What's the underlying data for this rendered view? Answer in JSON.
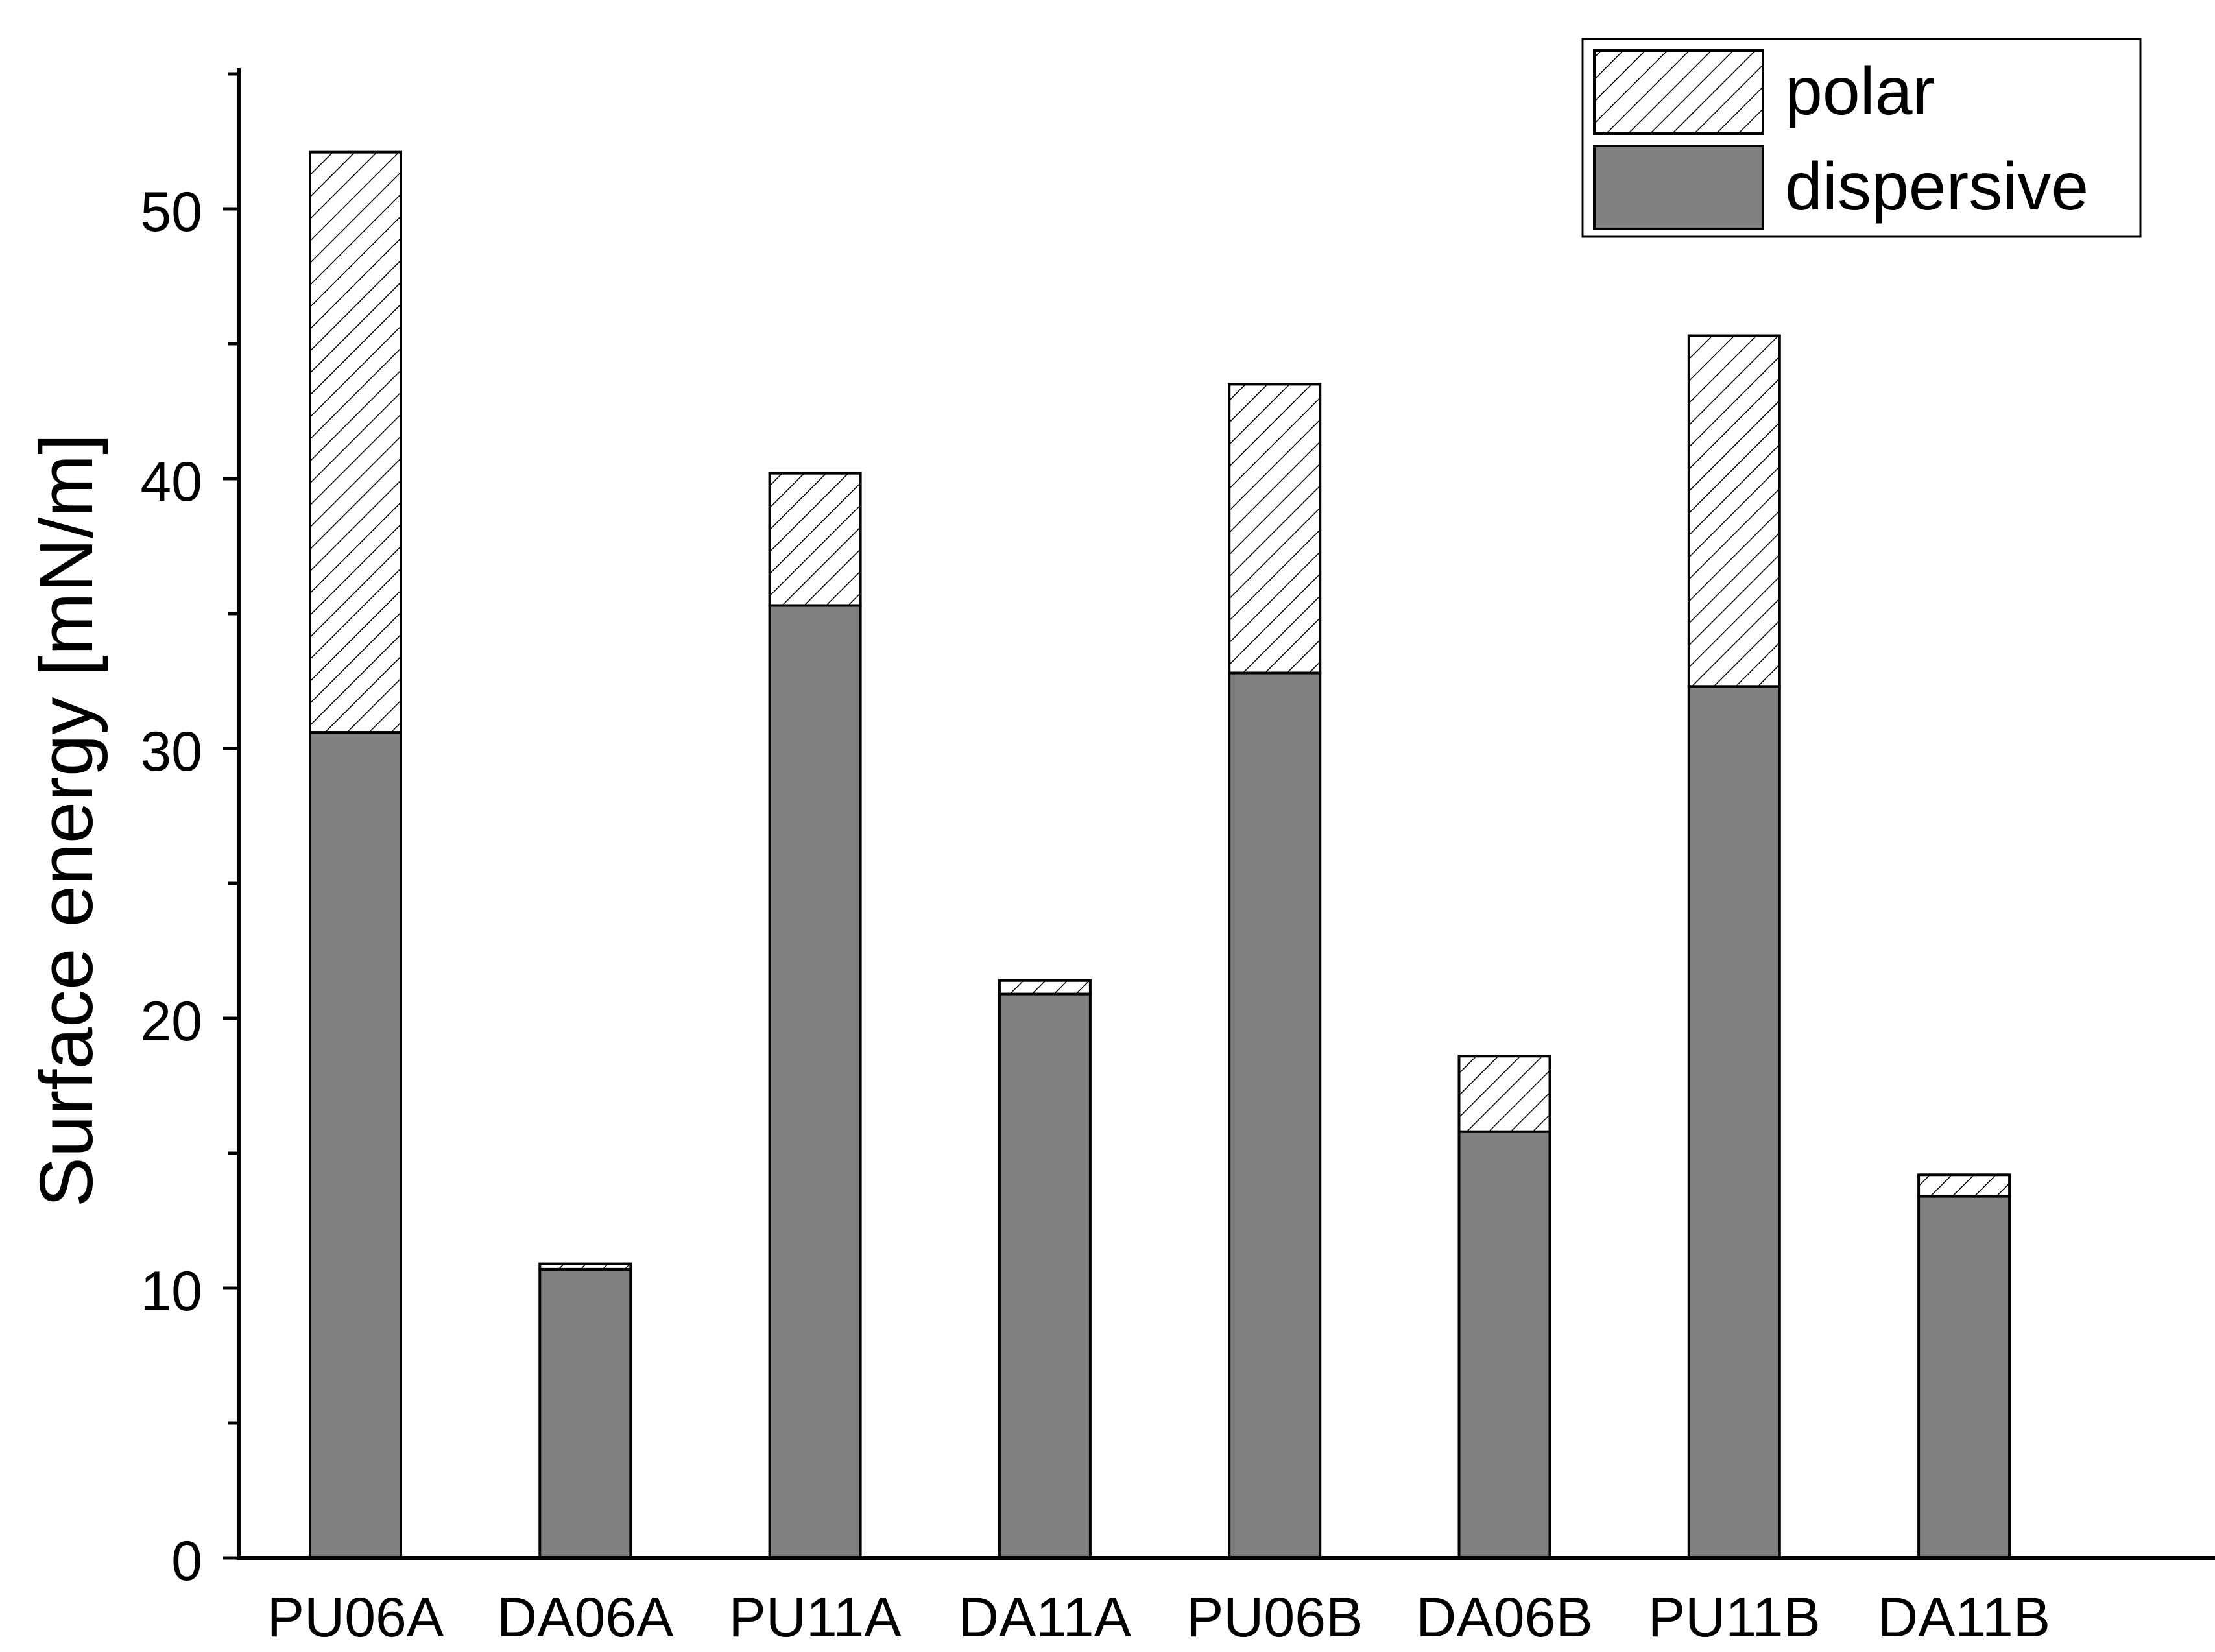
{
  "chart_data": {
    "type": "bar",
    "stacked": true,
    "title": "",
    "xlabel": "",
    "ylabel": "Surface energy [mN/m]",
    "ylim": [
      0,
      55
    ],
    "yticks": [
      0,
      10,
      20,
      30,
      40,
      50
    ],
    "grid": false,
    "legend_position": "top-right",
    "categories": [
      "PU06A",
      "DA06A",
      "PU11A",
      "DA11A",
      "PU06B",
      "DA06B",
      "PU11B",
      "DA11B"
    ],
    "series": [
      {
        "name": "dispersive",
        "pattern": "solid",
        "color": "#808080",
        "values": [
          30.6,
          10.7,
          35.3,
          20.9,
          32.8,
          15.8,
          32.3,
          13.4
        ]
      },
      {
        "name": "polar",
        "pattern": "hatched",
        "color": "#ffffff",
        "values": [
          21.5,
          0.2,
          4.9,
          0.5,
          10.7,
          2.8,
          13.0,
          0.8
        ]
      }
    ],
    "legend": {
      "entries": [
        "polar",
        "dispersive"
      ]
    }
  }
}
